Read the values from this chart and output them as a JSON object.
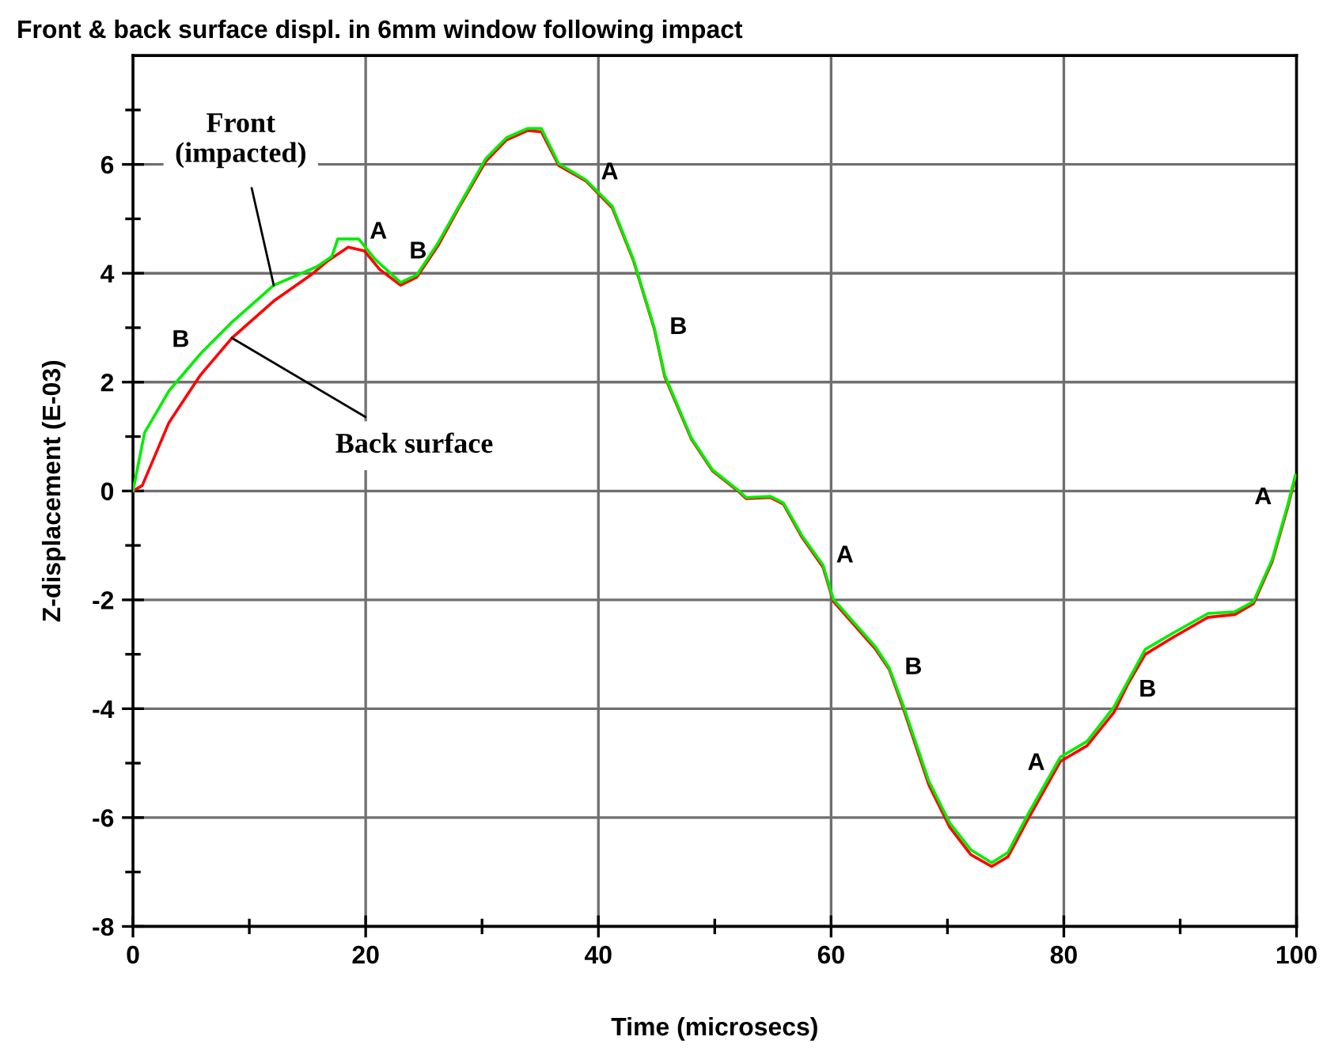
{
  "chart_data": {
    "type": "line",
    "title": "Front & back surface displ. in 6mm window following impact",
    "xlabel": "Time (microsecs)",
    "ylabel": "Z-displacement (E-03)",
    "xlim": [
      0,
      100
    ],
    "xticks": [
      0,
      {
        "value": 10,
        "label": null
      },
      20,
      {
        "value": 30,
        "label": null
      },
      40,
      {
        "value": 50,
        "label": null
      },
      60,
      {
        "value": 70,
        "label": null
      },
      80,
      {
        "value": 90,
        "label": null
      },
      100
    ],
    "ylim": [
      -8,
      8
    ],
    "yticks": [
      -8,
      {
        "value": -7,
        "label": null
      },
      -6,
      {
        "value": -5,
        "label": null
      },
      -4,
      {
        "value": -3,
        "label": null
      },
      -2,
      {
        "value": -1,
        "label": null
      },
      0,
      {
        "value": 1,
        "label": null
      },
      2,
      {
        "value": 3,
        "label": null
      },
      4,
      {
        "value": 5,
        "label": null
      },
      6,
      {
        "value": 7,
        "label": null
      }
    ],
    "grid": true,
    "line_style": "solid",
    "marker": "none",
    "series": [
      {
        "color": "#ff0000",
        "x": [
          0,
          0.8,
          3.1,
          5.8,
          8.5,
          12.1,
          15.3,
          16.7,
          18.5,
          19.9,
          21.2,
          23.0,
          24.4,
          26.2,
          28.0,
          30.3,
          32.1,
          33.9,
          35.1,
          36.6,
          38.9,
          41.2,
          43.0,
          44.8,
          45.7,
          48.0,
          49.8,
          52.1,
          52.7,
          54.8,
          55.9,
          57.5,
          59.3,
          60.2,
          63.8,
          65.0,
          66.1,
          68.4,
          70.2,
          72.0,
          73.8,
          75.2,
          77.0,
          79.7,
          82.0,
          84.3,
          85.5,
          87.0,
          89.3,
          92.4,
          94.7,
          96.3,
          97.9,
          99.2,
          99.9
        ],
        "values": [
          0,
          0.1,
          1.26,
          2.13,
          2.81,
          3.49,
          3.97,
          4.22,
          4.48,
          4.41,
          4.07,
          3.78,
          3.93,
          4.5,
          5.2,
          6.05,
          6.45,
          6.62,
          6.6,
          5.98,
          5.7,
          5.2,
          4.24,
          2.98,
          2.1,
          0.95,
          0.37,
          -0.02,
          -0.14,
          -0.12,
          -0.24,
          -0.85,
          -1.4,
          -2.03,
          -2.9,
          -3.28,
          -3.93,
          -5.4,
          -6.18,
          -6.68,
          -6.9,
          -6.72,
          -6.0,
          -4.97,
          -4.68,
          -4.07,
          -3.55,
          -3.0,
          -2.7,
          -2.32,
          -2.27,
          -2.07,
          -1.3,
          -0.33,
          0.25
        ]
      },
      {
        "color": "#00ee00",
        "x": [
          0,
          1.0,
          3.1,
          5.8,
          8.5,
          12.1,
          15.8,
          17.1,
          17.6,
          19.4,
          20.8,
          23.0,
          24.4,
          26.2,
          28.0,
          30.3,
          32.1,
          33.9,
          35.1,
          36.6,
          38.9,
          41.2,
          43.0,
          44.8,
          45.7,
          48.0,
          49.8,
          52.1,
          52.7,
          54.8,
          55.9,
          57.5,
          59.3,
          60.2,
          63.8,
          65.0,
          66.1,
          68.4,
          70.2,
          72.0,
          73.8,
          75.2,
          77.0,
          79.7,
          82.0,
          84.3,
          85.5,
          87.0,
          89.3,
          92.4,
          94.7,
          96.3,
          97.9,
          99.2,
          99.9
        ],
        "values": [
          0,
          1.07,
          1.84,
          2.52,
          3.1,
          3.78,
          4.12,
          4.31,
          4.63,
          4.63,
          4.26,
          3.83,
          3.97,
          4.55,
          5.23,
          6.1,
          6.49,
          6.66,
          6.66,
          6.01,
          5.72,
          5.23,
          4.26,
          3.0,
          2.13,
          0.97,
          0.39,
          0.0,
          -0.12,
          -0.1,
          -0.22,
          -0.82,
          -1.36,
          -1.99,
          -2.86,
          -3.25,
          -3.88,
          -5.33,
          -6.1,
          -6.59,
          -6.83,
          -6.64,
          -5.91,
          -4.89,
          -4.6,
          -3.97,
          -3.5,
          -2.91,
          -2.62,
          -2.25,
          -2.22,
          -2.03,
          -1.26,
          -0.29,
          0.29
        ]
      }
    ],
    "annotations": [
      {
        "text": "Front\n(impacted)",
        "x": 12.1,
        "y": 3.78
      },
      {
        "text": "Back surface",
        "x": 8.5,
        "y": 2.81
      },
      {
        "text": "B",
        "x": 5.8,
        "y": 2.52
      },
      {
        "text": "A",
        "x": 19.4,
        "y": 4.63
      },
      {
        "text": "B",
        "x": 26.2,
        "y": 4.55
      },
      {
        "text": "A",
        "x": 38.9,
        "y": 5.72
      },
      {
        "text": "B",
        "x": 44.8,
        "y": 3.0
      },
      {
        "text": "A",
        "x": 59.3,
        "y": -1.36
      },
      {
        "text": "B",
        "x": 65.0,
        "y": -3.25
      },
      {
        "text": "A",
        "x": 79.7,
        "y": -4.89
      },
      {
        "text": "B",
        "x": 85.5,
        "y": -3.5
      },
      {
        "text": "A",
        "x": 99.2,
        "y": -0.29
      }
    ]
  }
}
